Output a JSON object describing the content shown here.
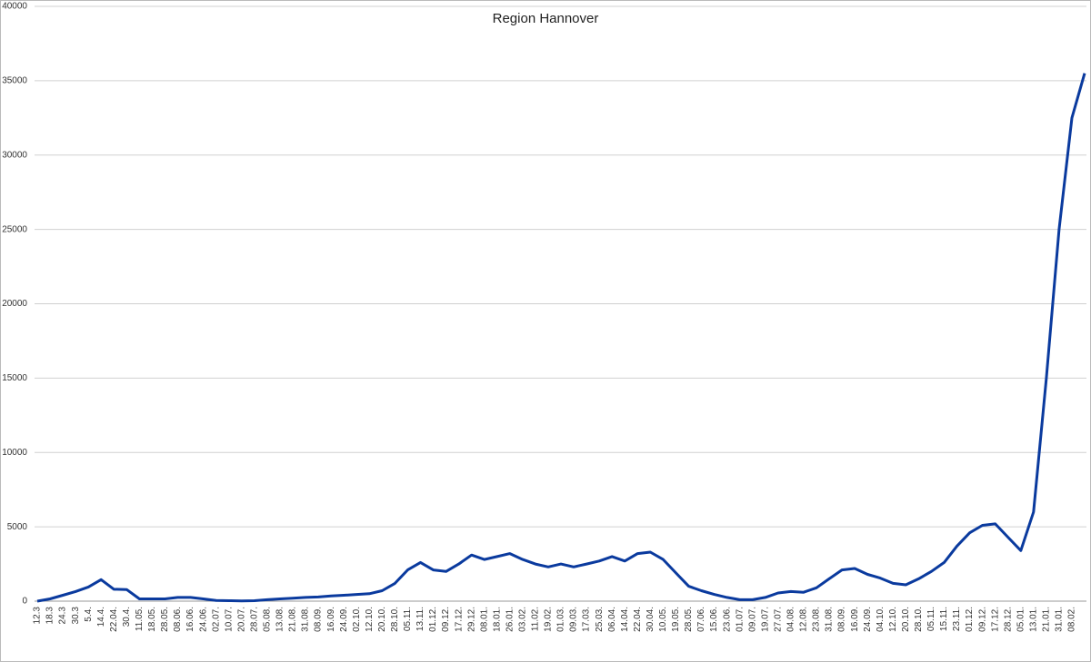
{
  "chart_data": {
    "type": "line",
    "title": "Region Hannover",
    "categories": [
      "12.3",
      "18.3",
      "24.3",
      "30.3",
      "5.4.",
      "14.4.",
      "22.04.",
      "30.4.",
      "11.05.",
      "18.05.",
      "28.05.",
      "08.06.",
      "16.06.",
      "24.06.",
      "02.07.",
      "10.07.",
      "20.07.",
      "28.07.",
      "05.08.",
      "13.08.",
      "21.08.",
      "31.08.",
      "08.09.",
      "16.09.",
      "24.09.",
      "02.10.",
      "12.10.",
      "20.10.",
      "28.10.",
      "05.11.",
      "13.11.",
      "01.12.",
      "09.12.",
      "17.12.",
      "29.12.",
      "08.01.",
      "18.01.",
      "26.01.",
      "03.02.",
      "11.02.",
      "19.02.",
      "01.03.",
      "09.03.",
      "17.03.",
      "25.03.",
      "06.04.",
      "14.04.",
      "22.04.",
      "30.04.",
      "10.05.",
      "19.05.",
      "28.05.",
      "07.06.",
      "15.06.",
      "23.06.",
      "01.07.",
      "09.07.",
      "19.07.",
      "27.07.",
      "04.08.",
      "12.08.",
      "23.08.",
      "31.08.",
      "08.09.",
      "16.09.",
      "24.09.",
      "04.10.",
      "12.10.",
      "20.10.",
      "28.10.",
      "05.11.",
      "15.11.",
      "23.11.",
      "01.12.",
      "09.12.",
      "17.12.",
      "28.12.",
      "05.01.",
      "13.01.",
      "21.01.",
      "31.01.",
      "08.02.",
      null
    ],
    "series": [
      {
        "color": "#0a3a9e",
        "values": [
          0,
          150,
          400,
          650,
          950,
          1450,
          800,
          780,
          150,
          150,
          150,
          250,
          250,
          150,
          50,
          30,
          20,
          30,
          100,
          150,
          200,
          250,
          280,
          350,
          400,
          450,
          500,
          700,
          1200,
          2100,
          2600,
          2100,
          2000,
          2500,
          3100,
          2800,
          3000,
          3200,
          2800,
          2500,
          2300,
          2500,
          2300,
          2500,
          2700,
          3000,
          2700,
          3200,
          3300,
          2800,
          1900,
          1000,
          700,
          450,
          250,
          100,
          100,
          250,
          550,
          650,
          600,
          900,
          1500,
          2100,
          2200,
          1800,
          1550,
          1200,
          1100,
          1500,
          2000,
          2600,
          3700,
          4600,
          5100,
          5200,
          4300,
          3400,
          6000,
          15000,
          25000,
          32500,
          35500
        ]
      }
    ],
    "ylim": [
      0,
      40000
    ],
    "yticks": [
      0,
      5000,
      10000,
      15000,
      20000,
      25000,
      30000,
      35000,
      40000
    ],
    "grid": true
  }
}
